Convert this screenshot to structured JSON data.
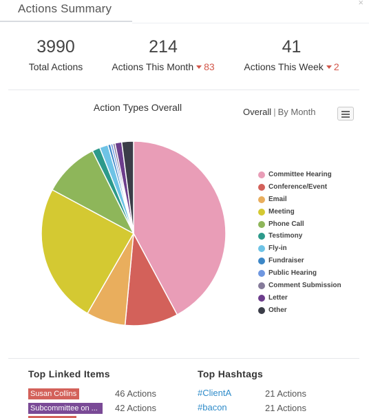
{
  "header": {
    "title": "Actions Summary",
    "close_icon": "close-icon"
  },
  "stats": [
    {
      "value": "3990",
      "label": "Total Actions",
      "delta": ""
    },
    {
      "value": "214",
      "label": "Actions This Month",
      "delta": "83"
    },
    {
      "value": "41",
      "label": "Actions This Week",
      "delta": "2"
    }
  ],
  "chart": {
    "view_toggle": {
      "active": "Overall",
      "separator": "|",
      "inactive": "By Month"
    },
    "menu_icon": "hamburger-menu-icon"
  },
  "chart_data": {
    "type": "pie",
    "title": "Action Types Overall",
    "legend_position": "right",
    "slices": [
      {
        "label": "Committee Hearing",
        "value": 43.0,
        "color": "#e99db7"
      },
      {
        "label": "Conference/Event",
        "value": 9.5,
        "color": "#d3615a"
      },
      {
        "label": "Email",
        "value": 7.0,
        "color": "#e9ae5d"
      },
      {
        "label": "Meeting",
        "value": 25.0,
        "color": "#d4c932"
      },
      {
        "label": "Phone Call",
        "value": 10.0,
        "color": "#8eb65a"
      },
      {
        "label": "Testimony",
        "value": 1.4,
        "color": "#2d9a8b"
      },
      {
        "label": "Fly-in",
        "value": 1.5,
        "color": "#6ec3e6"
      },
      {
        "label": "Fundraiser",
        "value": 0.5,
        "color": "#3d87c7"
      },
      {
        "label": "Public Hearing",
        "value": 0.4,
        "color": "#6f97e0"
      },
      {
        "label": "Comment Submission",
        "value": 0.4,
        "color": "#857b9a"
      },
      {
        "label": "Letter",
        "value": 1.2,
        "color": "#6c3d8c"
      },
      {
        "label": "Other",
        "value": 2.1,
        "color": "#3b3d48"
      }
    ]
  },
  "linked_items": {
    "title": "Top Linked Items",
    "rows": [
      {
        "label": "Susan Collins",
        "count": "46 Actions",
        "color": "#d3615a"
      },
      {
        "label": "Subcommittee on ...",
        "count": "42 Actions",
        "color": "#7a4a96"
      }
    ]
  },
  "hashtags": {
    "title": "Top Hashtags",
    "rows": [
      {
        "tag": "#ClientA",
        "count": "21 Actions"
      },
      {
        "tag": "#bacon",
        "count": "21 Actions"
      }
    ]
  }
}
